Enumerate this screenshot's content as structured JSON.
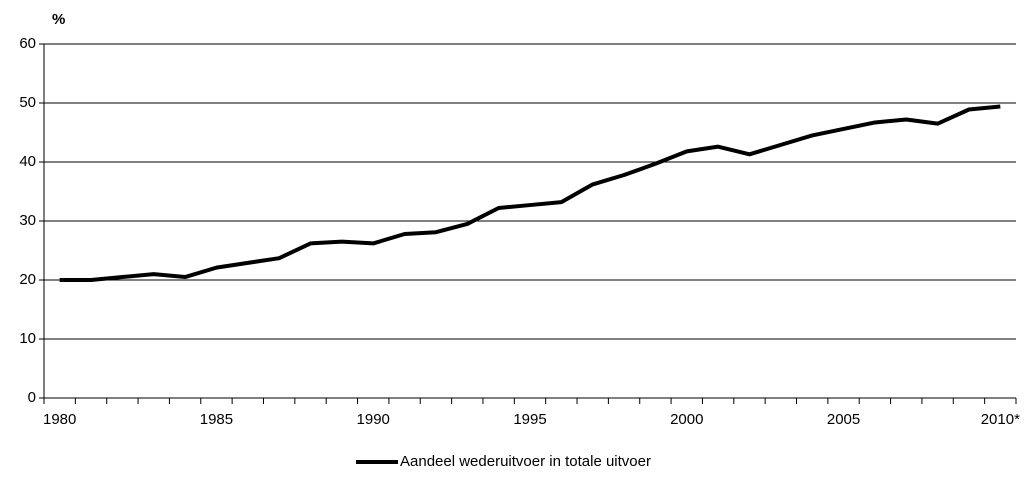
{
  "chart_data": {
    "type": "line",
    "y_label": "%",
    "categories": [
      "1980",
      null,
      null,
      null,
      null,
      "1985",
      null,
      null,
      null,
      null,
      "1990",
      null,
      null,
      null,
      null,
      "1995",
      null,
      null,
      null,
      null,
      "2000",
      null,
      null,
      null,
      null,
      "2005",
      null,
      null,
      null,
      null,
      "2010*"
    ],
    "series": [
      {
        "name": "Aandeel wederuitvoer in totale uitvoer",
        "color": "#000000",
        "values": [
          20,
          20,
          20.5,
          21,
          20.5,
          22.1,
          22.9,
          23.7,
          26.2,
          26.5,
          26.2,
          27.8,
          28.1,
          29.5,
          32.2,
          32.7,
          33.2,
          36.2,
          37.8,
          39.7,
          41.8,
          42.6,
          41.3,
          42.9,
          44.5,
          45.6,
          46.7,
          47.2,
          46.5,
          48.9,
          49.4
        ]
      }
    ],
    "ylim": [
      0,
      60
    ],
    "yticks": [
      0,
      10,
      20,
      30,
      40,
      50,
      60
    ],
    "grid": true,
    "legend": "bottom"
  }
}
